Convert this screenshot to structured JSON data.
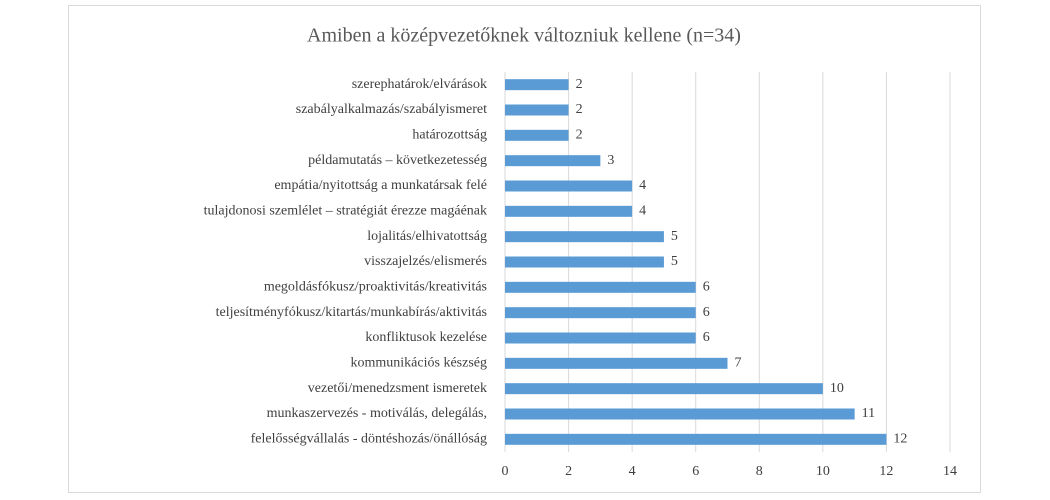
{
  "chart_data": {
    "type": "barh",
    "title": "Amiben a középvezetőknek változniuk kellene (n=34)",
    "categories": [
      "szerephatárok/elvárások",
      "szabályalkalmazás/szabályismeret",
      "határozottság",
      "példamutatás – következetesség",
      "empátia/nyitottság a munkatársak felé",
      "tulajdonosi szemlélet – stratégiát érezze magáénak",
      "lojalitás/elhivatottság",
      "visszajelzés/elismerés",
      "megoldásfókusz/proaktivitás/kreativitás",
      "teljesítményfókusz/kitartás/munkabírás/aktivitás",
      "konfliktusok kezelése",
      "kommunikációs készség",
      "vezetői/menedzsment ismeretek",
      "munkaszervezés - motiválás, delegálás,",
      "felelősségvállalás - döntéshozás/önállóság"
    ],
    "values": [
      2,
      2,
      2,
      3,
      4,
      4,
      5,
      5,
      6,
      6,
      6,
      7,
      10,
      11,
      12
    ],
    "color": "#5b9bd5",
    "xlim": [
      0,
      14
    ],
    "xticks": [
      0,
      2,
      4,
      6,
      8,
      10,
      12,
      14
    ],
    "grid": true
  }
}
